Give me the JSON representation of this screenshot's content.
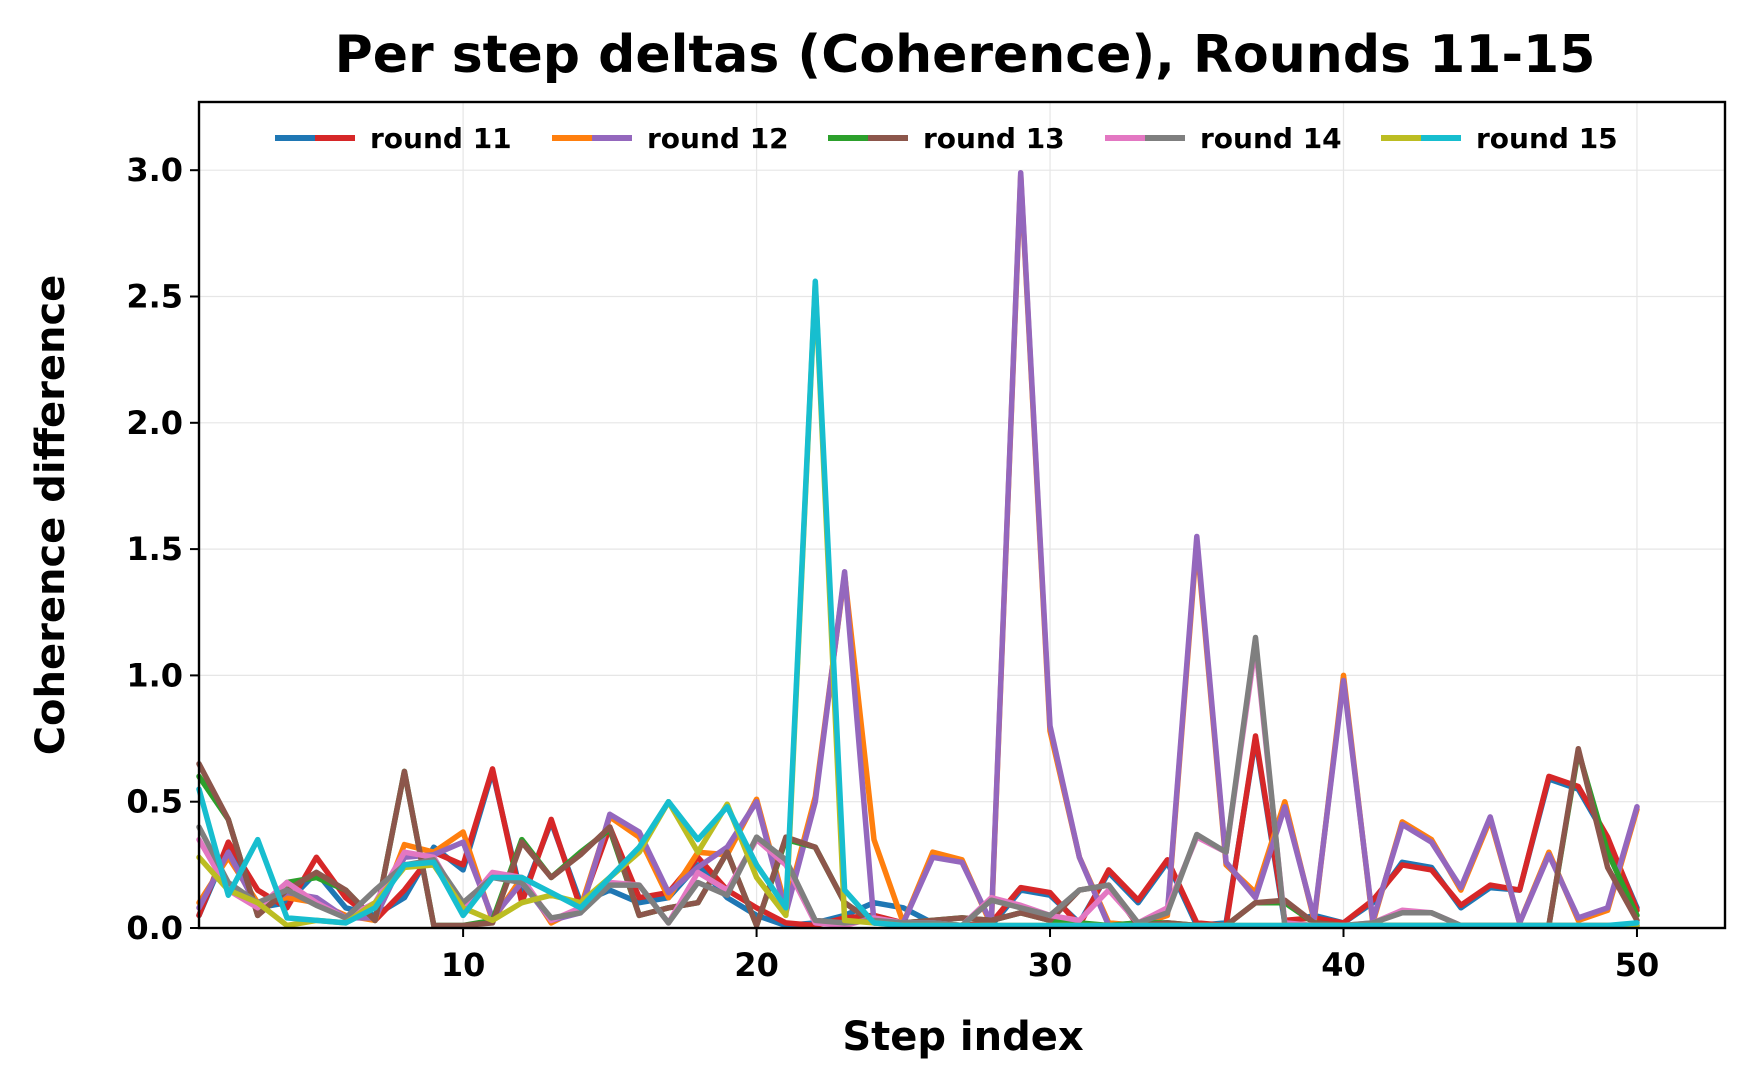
{
  "chart_data": {
    "type": "line",
    "title": "Per step deltas (Coherence), Rounds 11-15",
    "xlabel": "Step index",
    "ylabel": "Coherence difference",
    "xlim": [
      1,
      53
    ],
    "ylim": [
      0,
      3.27
    ],
    "xticks": [
      10,
      20,
      30,
      40,
      50
    ],
    "yticks": [
      0.0,
      0.5,
      1.0,
      1.5,
      2.0,
      2.5,
      3.0
    ],
    "grid": true,
    "legend": {
      "placement": "top-center",
      "entries": [
        {
          "label": "round 11",
          "colors": [
            "#1f77b4",
            "#d62728"
          ]
        },
        {
          "label": "round 12",
          "colors": [
            "#ff7f0e",
            "#9467bd"
          ]
        },
        {
          "label": "round 13",
          "colors": [
            "#2ca02c",
            "#8c564b"
          ]
        },
        {
          "label": "round 14",
          "colors": [
            "#e377c2",
            "#7f7f7f"
          ]
        },
        {
          "label": "round 15",
          "colors": [
            "#bcbd22",
            "#17becf"
          ]
        }
      ]
    },
    "x": [
      1,
      2,
      3,
      4,
      5,
      6,
      7,
      8,
      9,
      10,
      11,
      12,
      13,
      14,
      15,
      16,
      17,
      18,
      19,
      20,
      21,
      22,
      23,
      24,
      25,
      26,
      27,
      28,
      29,
      30,
      31,
      32,
      33,
      34,
      35,
      36,
      37,
      38,
      39,
      40,
      41,
      42,
      43,
      44,
      45,
      46,
      47,
      48,
      49,
      50
    ],
    "series": [
      {
        "color": "#1f77b4",
        "values": [
          0.05,
          0.32,
          0.08,
          0.1,
          0.22,
          0.08,
          0.05,
          0.12,
          0.32,
          0.23,
          0.62,
          0.12,
          0.42,
          0.1,
          0.15,
          0.1,
          0.12,
          0.25,
          0.12,
          0.05,
          0.01,
          0.02,
          0.05,
          0.1,
          0.08,
          0.02,
          0.01,
          0.01,
          0.15,
          0.13,
          0.02,
          0.22,
          0.1,
          0.26,
          0.01,
          0.02,
          0.75,
          0.02,
          0.05,
          0.02,
          0.1,
          0.26,
          0.24,
          0.08,
          0.16,
          0.15,
          0.59,
          0.55,
          0.35,
          0.08
        ]
      },
      {
        "color": "#d62728",
        "values": [
          0.05,
          0.34,
          0.15,
          0.08,
          0.28,
          0.12,
          0.03,
          0.15,
          0.3,
          0.25,
          0.63,
          0.1,
          0.43,
          0.08,
          0.4,
          0.12,
          0.14,
          0.28,
          0.15,
          0.08,
          0.02,
          0.01,
          0.04,
          0.05,
          0.02,
          0.01,
          0.01,
          0.02,
          0.16,
          0.14,
          0.01,
          0.23,
          0.11,
          0.27,
          0.02,
          0.01,
          0.76,
          0.03,
          0.04,
          0.02,
          0.11,
          0.25,
          0.23,
          0.09,
          0.17,
          0.15,
          0.6,
          0.56,
          0.36,
          0.07
        ]
      },
      {
        "color": "#ff7f0e",
        "values": [
          0.1,
          0.28,
          0.1,
          0.12,
          0.1,
          0.05,
          0.03,
          0.33,
          0.3,
          0.38,
          0.03,
          0.2,
          0.02,
          0.08,
          0.44,
          0.36,
          0.12,
          0.3,
          0.29,
          0.51,
          0.08,
          0.52,
          1.4,
          0.35,
          0.02,
          0.3,
          0.27,
          0.01,
          2.98,
          0.78,
          0.28,
          0.02,
          0.01,
          0.05,
          1.53,
          0.25,
          0.14,
          0.5,
          0.03,
          1.0,
          0.02,
          0.42,
          0.35,
          0.15,
          0.43,
          0.02,
          0.3,
          0.03,
          0.07,
          0.47
        ]
      },
      {
        "color": "#9467bd",
        "values": [
          0.08,
          0.3,
          0.08,
          0.14,
          0.12,
          0.04,
          0.04,
          0.28,
          0.29,
          0.34,
          0.04,
          0.18,
          0.03,
          0.06,
          0.45,
          0.38,
          0.14,
          0.24,
          0.32,
          0.5,
          0.06,
          0.5,
          1.41,
          0.02,
          0.02,
          0.28,
          0.26,
          0.02,
          2.99,
          0.8,
          0.28,
          0.01,
          0.02,
          0.06,
          1.55,
          0.26,
          0.12,
          0.48,
          0.04,
          0.98,
          0.03,
          0.41,
          0.34,
          0.16,
          0.44,
          0.02,
          0.29,
          0.04,
          0.08,
          0.48
        ]
      },
      {
        "color": "#2ca02c",
        "values": [
          0.6,
          0.43,
          0.05,
          0.18,
          0.2,
          0.15,
          0.03,
          0.62,
          0.01,
          0.01,
          0.03,
          0.35,
          0.2,
          0.3,
          0.39,
          0.05,
          0.08,
          0.1,
          0.3,
          0.01,
          0.35,
          0.32,
          0.1,
          0.02,
          0.02,
          0.03,
          0.04,
          0.03,
          0.06,
          0.03,
          0.02,
          0.01,
          0.02,
          0.02,
          0.01,
          0.01,
          0.1,
          0.1,
          0.02,
          0.01,
          0.01,
          0.01,
          0.01,
          0.01,
          0.01,
          0.01,
          0.01,
          0.7,
          0.3,
          0.05
        ]
      },
      {
        "color": "#8c564b",
        "values": [
          0.65,
          0.43,
          0.05,
          0.15,
          0.22,
          0.15,
          0.03,
          0.62,
          0.01,
          0.01,
          0.02,
          0.34,
          0.2,
          0.29,
          0.4,
          0.05,
          0.08,
          0.1,
          0.3,
          0.01,
          0.36,
          0.32,
          0.1,
          0.02,
          0.02,
          0.03,
          0.04,
          0.03,
          0.06,
          0.03,
          0.15,
          0.17,
          0.01,
          0.02,
          0.01,
          0.01,
          0.1,
          0.11,
          0.02,
          0.01,
          0.01,
          0.01,
          0.01,
          0.01,
          0.01,
          0.01,
          0.01,
          0.71,
          0.24,
          0.03
        ]
      },
      {
        "color": "#e377c2",
        "values": [
          0.35,
          0.15,
          0.08,
          0.18,
          0.1,
          0.04,
          0.1,
          0.3,
          0.28,
          0.08,
          0.22,
          0.2,
          0.03,
          0.08,
          0.18,
          0.17,
          0.02,
          0.22,
          0.15,
          0.35,
          0.25,
          0.02,
          0.01,
          0.04,
          0.02,
          0.02,
          0.01,
          0.12,
          0.09,
          0.05,
          0.03,
          0.15,
          0.02,
          0.08,
          0.36,
          0.3,
          1.12,
          0.02,
          0.01,
          0.01,
          0.02,
          0.07,
          0.06,
          0.01,
          0.01,
          0.01,
          0.01,
          0.01,
          0.01,
          0.01
        ]
      },
      {
        "color": "#7f7f7f",
        "values": [
          0.4,
          0.18,
          0.1,
          0.15,
          0.09,
          0.04,
          0.15,
          0.25,
          0.27,
          0.1,
          0.2,
          0.18,
          0.04,
          0.06,
          0.17,
          0.17,
          0.02,
          0.18,
          0.13,
          0.36,
          0.27,
          0.03,
          0.02,
          0.03,
          0.02,
          0.02,
          0.01,
          0.11,
          0.08,
          0.05,
          0.15,
          0.17,
          0.02,
          0.06,
          0.37,
          0.3,
          1.15,
          0.01,
          0.01,
          0.01,
          0.02,
          0.06,
          0.06,
          0.01,
          0.01,
          0.01,
          0.01,
          0.01,
          0.01,
          0.01
        ]
      },
      {
        "color": "#bcbd22",
        "values": [
          0.28,
          0.15,
          0.1,
          0.01,
          0.03,
          0.02,
          0.1,
          0.24,
          0.25,
          0.08,
          0.03,
          0.1,
          0.13,
          0.1,
          0.2,
          0.3,
          0.5,
          0.3,
          0.49,
          0.2,
          0.05,
          2.55,
          0.03,
          0.02,
          0.01,
          0.01,
          0.01,
          0.01,
          0.01,
          0.01,
          0.01,
          0.01,
          0.01,
          0.01,
          0.01,
          0.01,
          0.01,
          0.01,
          0.01,
          0.01,
          0.01,
          0.01,
          0.01,
          0.01,
          0.01,
          0.01,
          0.01,
          0.01,
          0.01,
          0.01
        ]
      },
      {
        "color": "#17becf",
        "values": [
          0.55,
          0.13,
          0.35,
          0.04,
          0.03,
          0.02,
          0.08,
          0.25,
          0.26,
          0.05,
          0.2,
          0.2,
          0.14,
          0.08,
          0.2,
          0.32,
          0.5,
          0.35,
          0.48,
          0.25,
          0.08,
          2.56,
          0.15,
          0.02,
          0.01,
          0.01,
          0.01,
          0.01,
          0.01,
          0.01,
          0.01,
          0.01,
          0.01,
          0.01,
          0.01,
          0.01,
          0.01,
          0.01,
          0.01,
          0.01,
          0.01,
          0.01,
          0.01,
          0.01,
          0.01,
          0.01,
          0.01,
          0.01,
          0.01,
          0.02
        ]
      }
    ]
  }
}
